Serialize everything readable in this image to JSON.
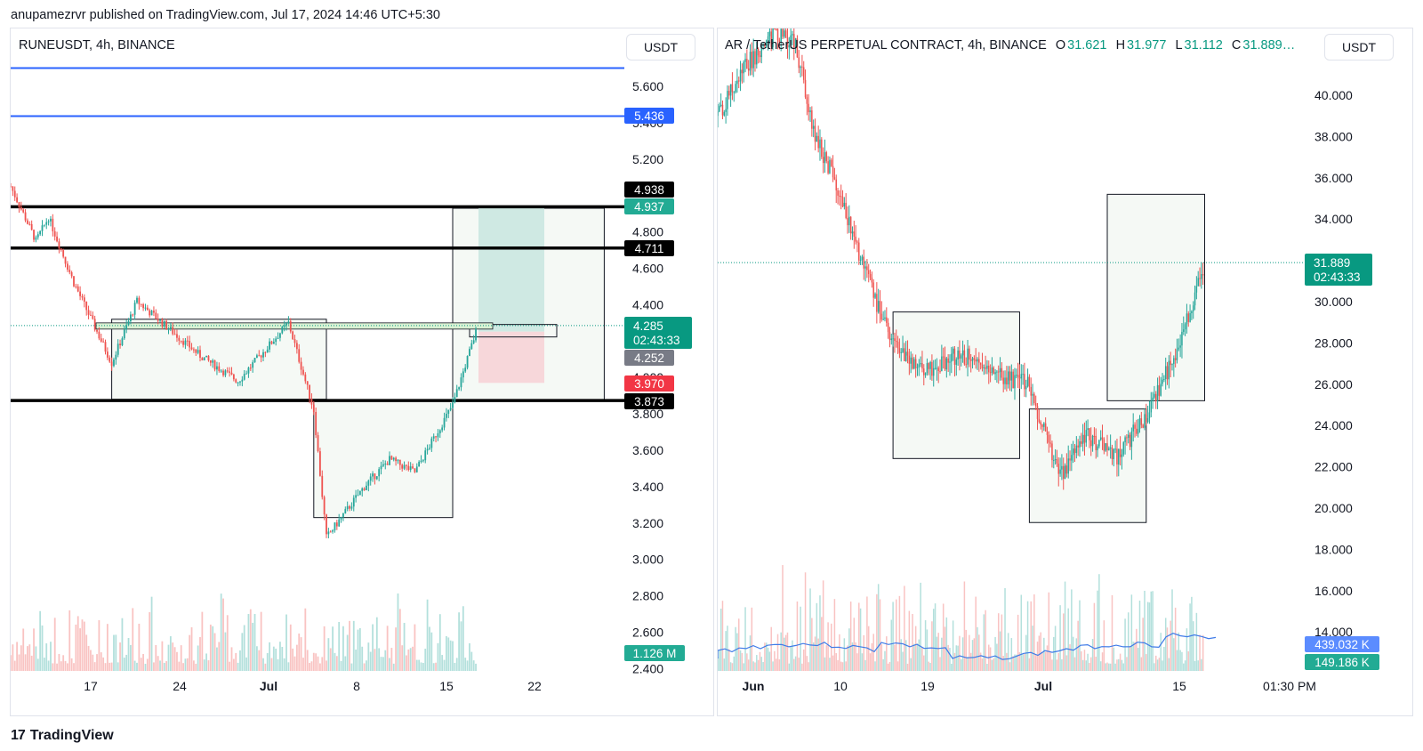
{
  "header": "anupamezrvr published on TradingView.com, Jul 17, 2024 14:46 UTC+5:30",
  "footer": {
    "logo_glyph": "17",
    "brand": "TradingView"
  },
  "colors": {
    "up": "#26a69a",
    "down": "#ef5350",
    "blue": "#2962ff",
    "label_green": "#089981"
  },
  "chart_data": [
    {
      "type": "candlestick",
      "symbol": "RUNEUSDT, 4h, BINANCE",
      "currency": "USDT",
      "price_ticks": [
        "5.600",
        "5.200",
        "4.800",
        "4.600",
        "4.400",
        "3.800",
        "3.600",
        "3.400",
        "3.200",
        "3.000",
        "2.800",
        "2.600",
        "2.400"
      ],
      "price_ticks_partial": [
        "5.400",
        "4.000"
      ],
      "time_ticks": [
        "17",
        "24",
        "Jul",
        "8",
        "15",
        "22"
      ],
      "last_price": "4.285",
      "countdown": "02:43:33",
      "price_labels": [
        "5.436",
        "4.938",
        "4.937",
        "4.711",
        "4.252",
        "3.970",
        "3.873"
      ],
      "volume_label": "1.126 M",
      "horizontal_lines": [
        {
          "price": 5.7,
          "color": "blue"
        },
        {
          "price": 5.436,
          "color": "blue"
        },
        {
          "price": 4.938,
          "color": "black"
        },
        {
          "price": 4.711,
          "color": "black"
        },
        {
          "price": 3.873,
          "color": "black"
        }
      ],
      "ranges": [
        {
          "from": "Jun 18",
          "to": "Jul 5",
          "top": 4.32,
          "bottom": 3.88
        },
        {
          "from": "Jul 4",
          "to": "Jul 15",
          "top": 3.87,
          "bottom": 3.23
        },
        {
          "from": "Jul 15",
          "to": "Jul 27",
          "top": 4.93,
          "bottom": 3.87
        }
      ],
      "position": {
        "entry": 4.252,
        "take_profit": 4.938,
        "stop": 3.97
      },
      "price_path": [
        [
          "Jun 10",
          5.05
        ],
        [
          "Jun 12",
          4.75
        ],
        [
          "Jun 13",
          4.88
        ],
        [
          "Jun 15",
          4.52
        ],
        [
          "Jun 18",
          4.08
        ],
        [
          "Jun 20",
          4.42
        ],
        [
          "Jun 25",
          4.12
        ],
        [
          "Jun 28",
          3.98
        ],
        [
          "Jul 2",
          4.3
        ],
        [
          "Jul 4",
          3.82
        ],
        [
          "Jul 5",
          3.12
        ],
        [
          "Jul 8",
          3.4
        ],
        [
          "Jul 10",
          3.55
        ],
        [
          "Jul 12",
          3.48
        ],
        [
          "Jul 15",
          3.85
        ],
        [
          "Jul 17",
          4.285
        ]
      ]
    },
    {
      "type": "candlestick",
      "symbol": "AR / TetherUS PERPETUAL CONTRACT, 4h, BINANCE",
      "ohlc": {
        "O": "31.621",
        "H": "31.977",
        "L": "31.112",
        "C": "31.889…"
      },
      "ohlc_letters": {
        "O": "O",
        "H": "H",
        "L": "L",
        "C": "C"
      },
      "currency": "USDT",
      "price_ticks": [
        "40.000",
        "38.000",
        "36.000",
        "34.000",
        "30.000",
        "28.000",
        "26.000",
        "24.000",
        "22.000",
        "20.000",
        "18.000",
        "16.000",
        "14.000"
      ],
      "time_ticks": [
        "Jun",
        "10",
        "19",
        "Jul",
        "15",
        "01:30 PM"
      ],
      "last_price": "31.889",
      "countdown": "02:43:33",
      "volume_labels": [
        "439.032 K",
        "149.186 K"
      ],
      "ranges": [
        {
          "from": "Jun 15",
          "to": "Jun 28",
          "top": 29.5,
          "bottom": 22.4
        },
        {
          "from": "Jun 29",
          "to": "Jul 11",
          "top": 24.8,
          "bottom": 19.3
        },
        {
          "from": "Jul 7",
          "to": "Jul 17",
          "top": 35.2,
          "bottom": 25.2
        }
      ],
      "price_path": [
        [
          "May 28",
          39.0
        ],
        [
          "May 31",
          41.5
        ],
        [
          "Jun 3",
          43.0
        ],
        [
          "Jun 5",
          42.5
        ],
        [
          "Jun 7",
          38.0
        ],
        [
          "Jun 9",
          36.0
        ],
        [
          "Jun 12",
          31.5
        ],
        [
          "Jun 15",
          28.0
        ],
        [
          "Jun 18",
          26.5
        ],
        [
          "Jun 22",
          27.5
        ],
        [
          "Jun 25",
          26.5
        ],
        [
          "Jun 29",
          26.0
        ],
        [
          "Jul 2",
          21.5
        ],
        [
          "Jul 5",
          23.5
        ],
        [
          "Jul 8",
          22.5
        ],
        [
          "Jul 11",
          24.5
        ],
        [
          "Jul 14",
          27.5
        ],
        [
          "Jul 17",
          31.889
        ]
      ]
    }
  ]
}
